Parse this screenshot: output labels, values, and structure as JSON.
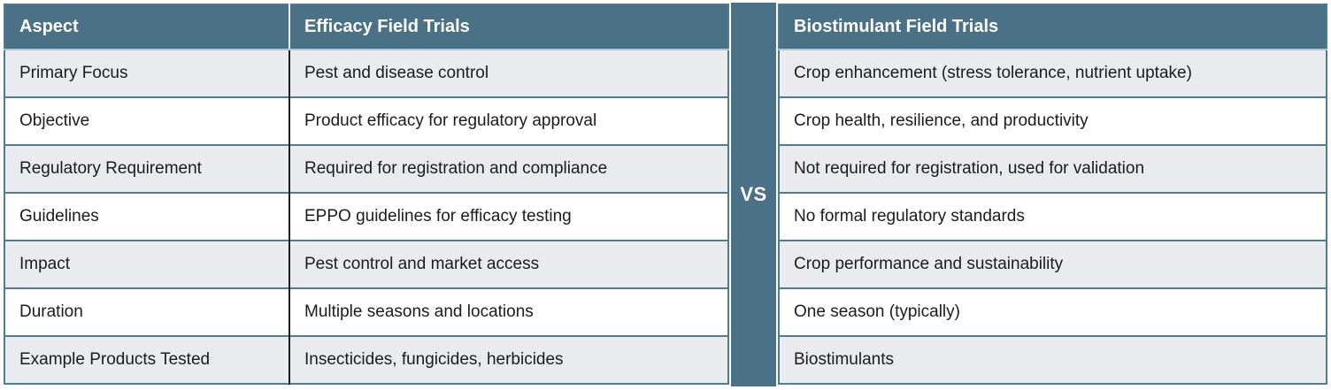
{
  "table": {
    "headers": {
      "aspect": "Aspect",
      "efficacy": "Efficacy Field Trials",
      "biostimulant": "Biostimulant Field Trials"
    },
    "divider": "VS",
    "rows": [
      {
        "aspect": "Primary Focus",
        "efficacy": "Pest and disease control",
        "biostimulant": "Crop enhancement (stress tolerance, nutrient uptake)"
      },
      {
        "aspect": "Objective",
        "efficacy": "Product efficacy for regulatory approval",
        "biostimulant": "Crop health, resilience, and productivity"
      },
      {
        "aspect": "Regulatory Requirement",
        "efficacy": "Required for registration and compliance",
        "biostimulant": "Not required for registration, used for validation"
      },
      {
        "aspect": "Guidelines",
        "efficacy": "EPPO guidelines for efficacy testing",
        "biostimulant": "No formal regulatory standards"
      },
      {
        "aspect": "Impact",
        "efficacy": "Pest control and market access",
        "biostimulant": "Crop performance and sustainability"
      },
      {
        "aspect": "Duration",
        "efficacy": "Multiple seasons and locations",
        "biostimulant": "One season (typically)"
      },
      {
        "aspect": "Example Products Tested",
        "efficacy": "Insecticides, fungicides, herbicides",
        "biostimulant": "Biostimulants"
      }
    ]
  },
  "colors": {
    "header_bg": "#4A7186",
    "border": "#4E7C93",
    "header_divider": "#ECF2F5",
    "body_divider": "#1F1F1F",
    "row_alt_bg": "#E9EBEE",
    "row_bg": "#FFFFFF",
    "header_text": "#FFFFFF",
    "body_text": "#1B1B1B"
  }
}
